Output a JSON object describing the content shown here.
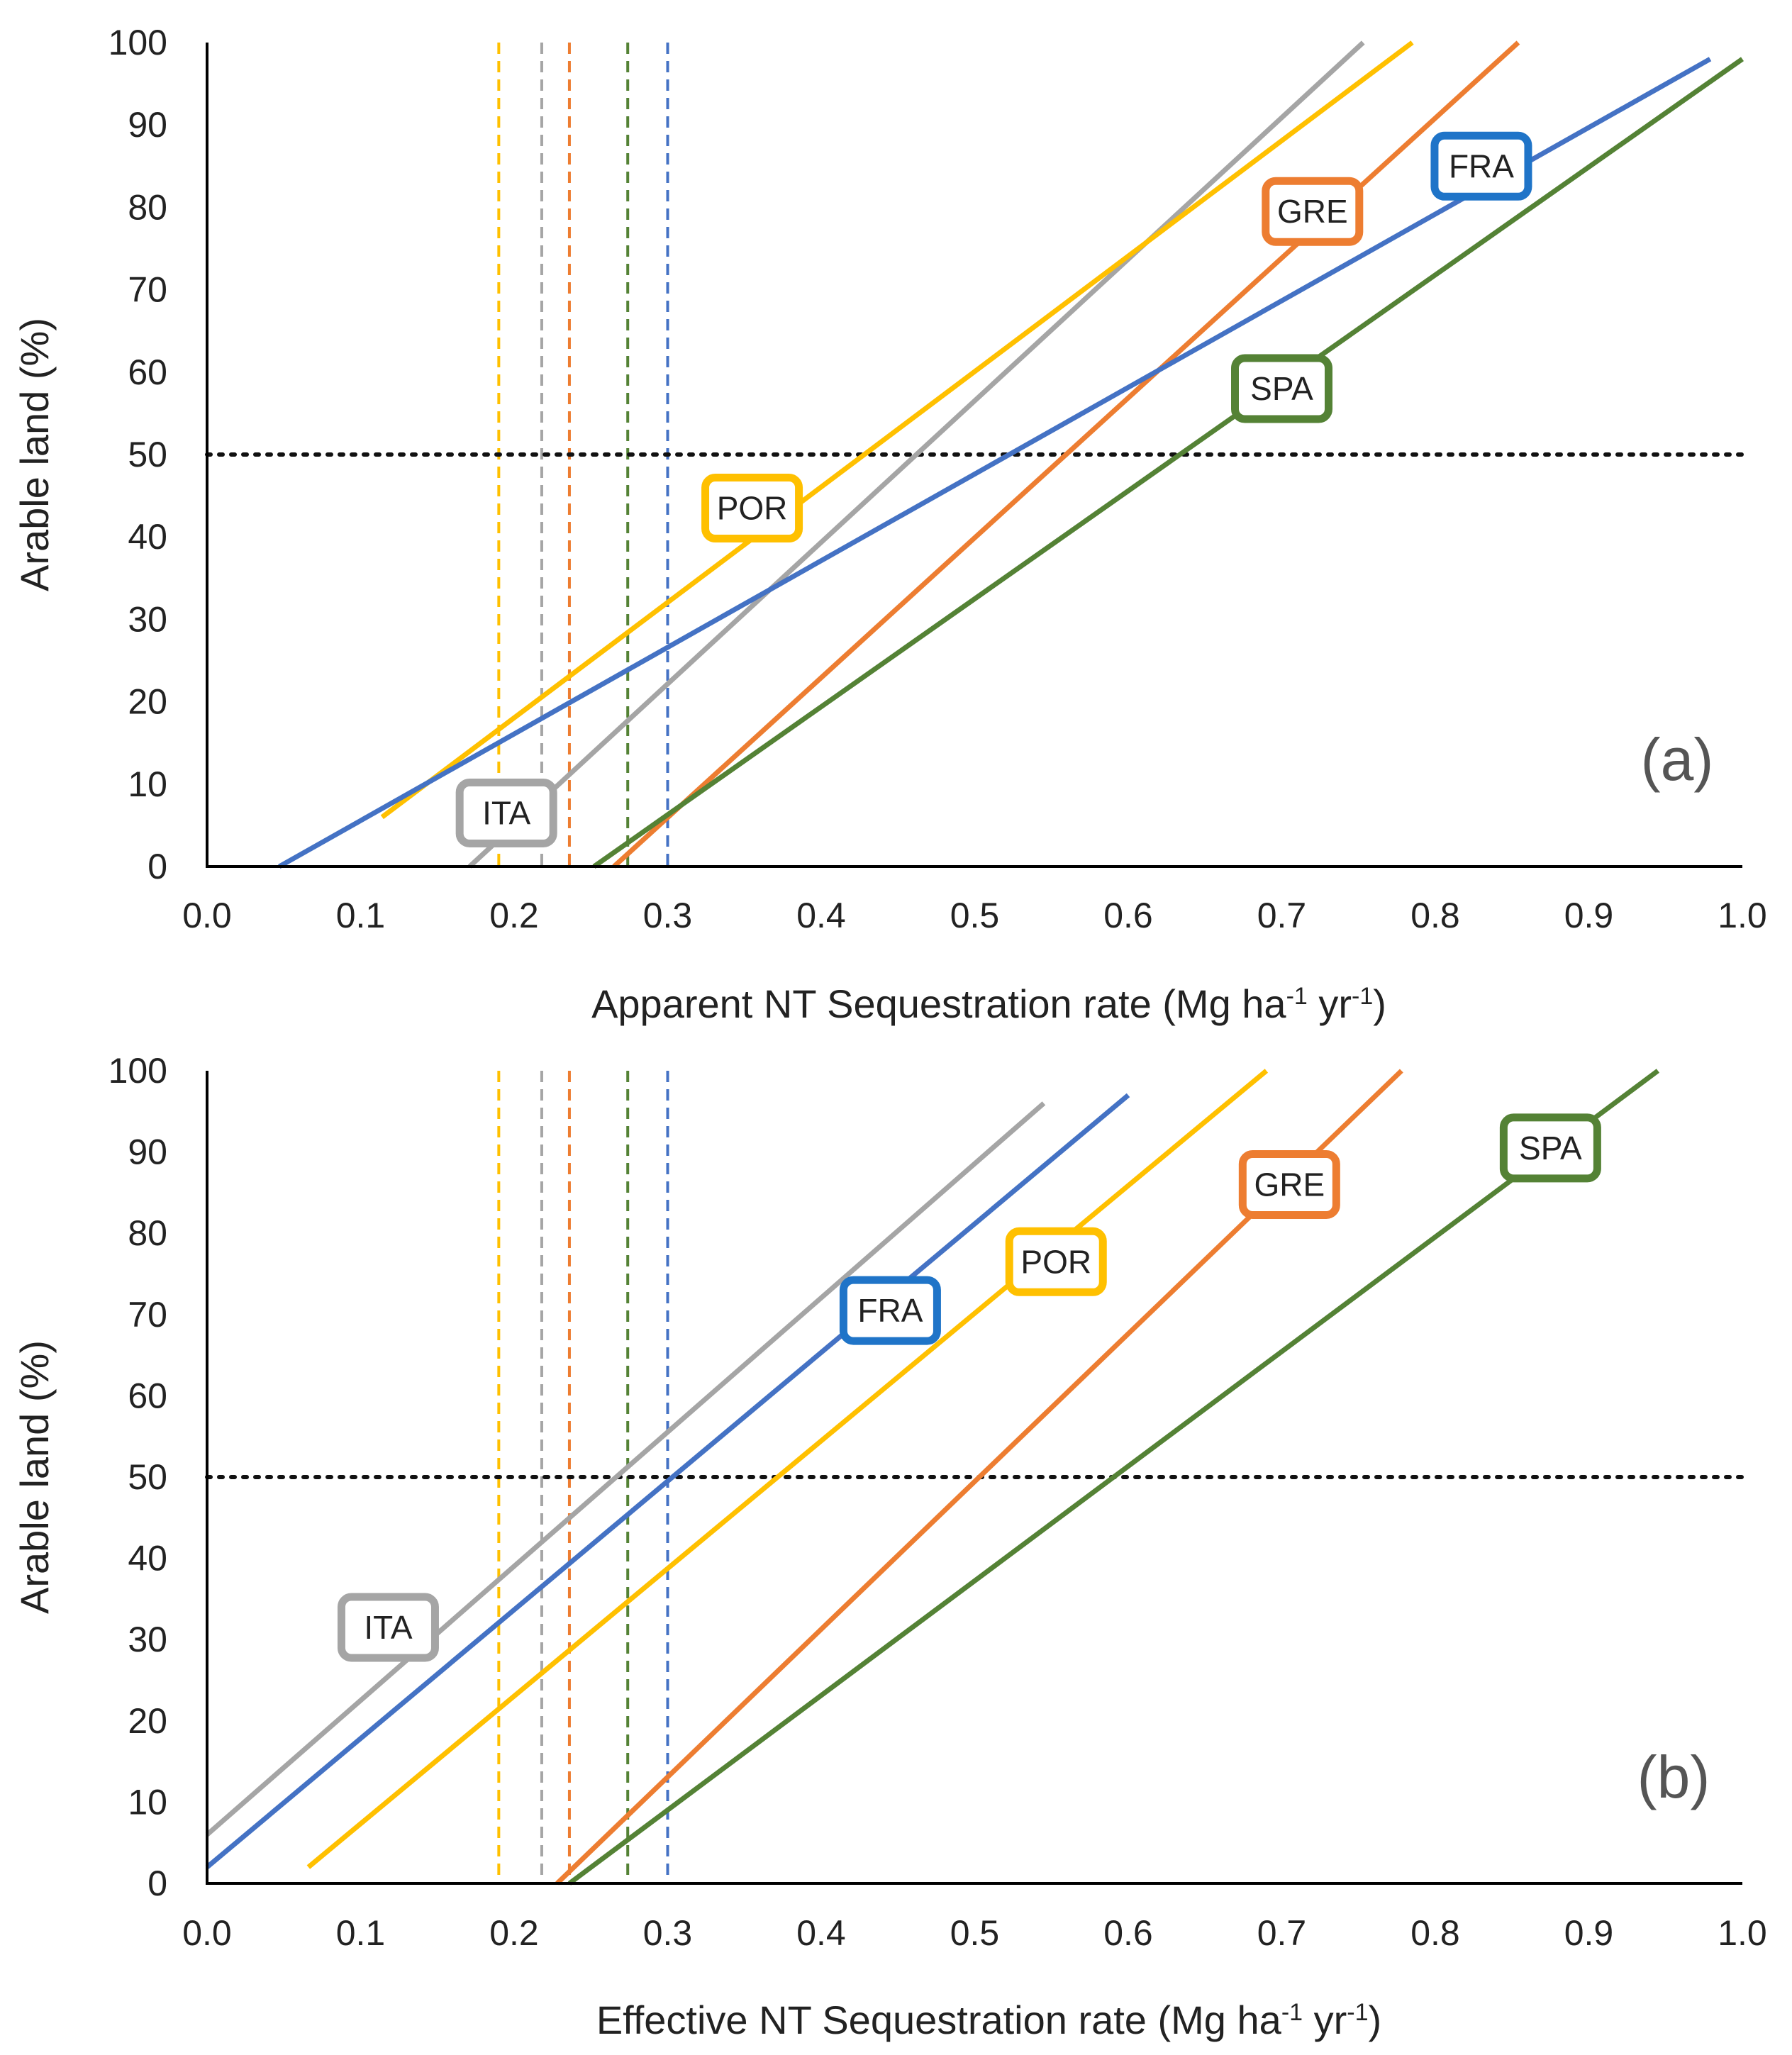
{
  "colors": {
    "FRA": "#4472C4",
    "SPA": "#548235",
    "GRE": "#ED7D31",
    "POR": "#FFC000",
    "ITA": "#A5A5A5",
    "FRA_box": "#1F74C8"
  },
  "chart_data": [
    {
      "type": "line",
      "panel_label": "(a)",
      "xlabel": "Apparent NT Sequestration rate (Mg ha",
      "xlabel_sup1": "-1",
      "xlabel_mid": " yr",
      "xlabel_sup2": "-1",
      "xlabel_end": ")",
      "ylabel": "Arable land (%)",
      "xlim": [
        0,
        1
      ],
      "ylim": [
        0,
        100
      ],
      "x_ticks": [
        "0.0",
        "0.1",
        "0.2",
        "0.3",
        "0.4",
        "0.5",
        "0.6",
        "0.7",
        "0.8",
        "0.9",
        "1.0"
      ],
      "y_ticks": [
        "0",
        "10",
        "20",
        "30",
        "40",
        "50",
        "60",
        "70",
        "80",
        "90",
        "100"
      ],
      "reference_hline": 50,
      "vlines": [
        {
          "country": "POR",
          "x": 0.19
        },
        {
          "country": "ITA",
          "x": 0.218
        },
        {
          "country": "GRE",
          "x": 0.236
        },
        {
          "country": "SPA",
          "x": 0.274
        },
        {
          "country": "FRA",
          "x": 0.3
        }
      ],
      "series": [
        {
          "name": "ITA",
          "x": [
            0.171,
            0.753
          ],
          "y": [
            0,
            100
          ]
        },
        {
          "name": "POR",
          "x": [
            0.114,
            0.785
          ],
          "y": [
            6,
            100
          ]
        },
        {
          "name": "GRE",
          "x": [
            0.265,
            0.854
          ],
          "y": [
            0,
            100
          ]
        },
        {
          "name": "FRA",
          "x": [
            0.047,
            0.979
          ],
          "y": [
            0,
            98
          ]
        },
        {
          "name": "SPA",
          "x": [
            0.252,
            1.0
          ],
          "y": [
            0,
            98
          ]
        }
      ],
      "labels": [
        {
          "text": "ITA",
          "country": "ITA",
          "x": 0.195,
          "y": 6.5
        },
        {
          "text": "POR",
          "country": "POR",
          "x": 0.355,
          "y": 43.5
        },
        {
          "text": "GRE",
          "country": "GRE",
          "x": 0.72,
          "y": 79.5
        },
        {
          "text": "FRA",
          "country": "FRA",
          "x": 0.83,
          "y": 85
        },
        {
          "text": "SPA",
          "country": "SPA",
          "x": 0.7,
          "y": 58
        }
      ]
    },
    {
      "type": "line",
      "panel_label": "(b)",
      "xlabel": "Effective NT Sequestration rate (Mg ha",
      "xlabel_sup1": "-1",
      "xlabel_mid": " yr",
      "xlabel_sup2": "-1",
      "xlabel_end": ")",
      "ylabel": "Arable land (%)",
      "xlim": [
        0,
        1
      ],
      "ylim": [
        0,
        100
      ],
      "x_ticks": [
        "0.0",
        "0.1",
        "0.2",
        "0.3",
        "0.4",
        "0.5",
        "0.6",
        "0.7",
        "0.8",
        "0.9",
        "1.0"
      ],
      "y_ticks": [
        "0",
        "10",
        "20",
        "30",
        "40",
        "50",
        "60",
        "70",
        "80",
        "90",
        "100"
      ],
      "reference_hline": 50,
      "vlines": [
        {
          "country": "POR",
          "x": 0.19
        },
        {
          "country": "ITA",
          "x": 0.218
        },
        {
          "country": "GRE",
          "x": 0.236
        },
        {
          "country": "SPA",
          "x": 0.274
        },
        {
          "country": "FRA",
          "x": 0.3
        }
      ],
      "series": [
        {
          "name": "ITA",
          "x": [
            0.0,
            0.545
          ],
          "y": [
            6,
            96
          ]
        },
        {
          "name": "FRA",
          "x": [
            0.0,
            0.6
          ],
          "y": [
            2,
            97
          ]
        },
        {
          "name": "POR",
          "x": [
            0.066,
            0.69
          ],
          "y": [
            2,
            100
          ]
        },
        {
          "name": "GRE",
          "x": [
            0.228,
            0.778
          ],
          "y": [
            0,
            100
          ]
        },
        {
          "name": "SPA",
          "x": [
            0.236,
            0.945
          ],
          "y": [
            0,
            100
          ]
        }
      ],
      "labels": [
        {
          "text": "ITA",
          "country": "ITA",
          "x": 0.118,
          "y": 31.5
        },
        {
          "text": "FRA",
          "country": "FRA",
          "x": 0.445,
          "y": 70.5
        },
        {
          "text": "POR",
          "country": "POR",
          "x": 0.553,
          "y": 76.5
        },
        {
          "text": "GRE",
          "country": "GRE",
          "x": 0.705,
          "y": 86
        },
        {
          "text": "SPA",
          "country": "SPA",
          "x": 0.875,
          "y": 90.5
        }
      ]
    }
  ]
}
